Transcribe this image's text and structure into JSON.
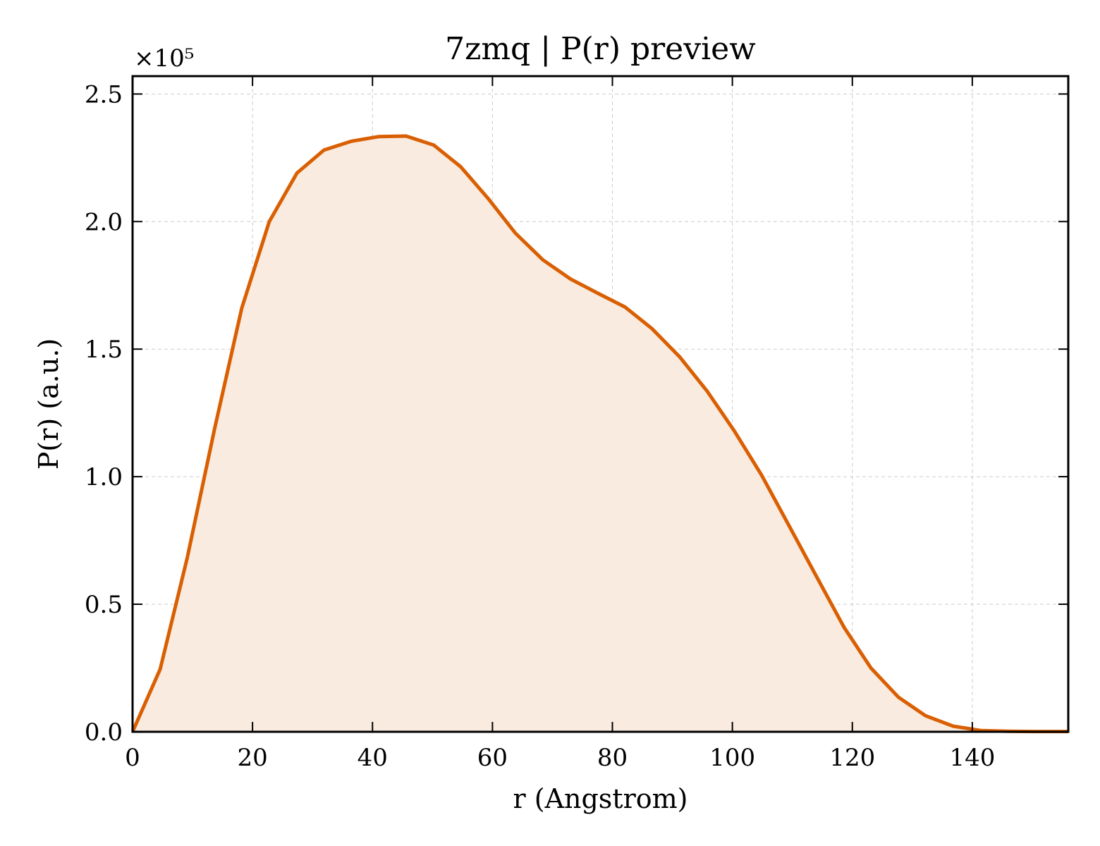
{
  "chart_data": {
    "type": "area",
    "title": "7zmq | P(r) preview",
    "xlabel": "r (Angstrom)",
    "ylabel": "P(r) (a.u.)",
    "y_offset_label": "×10⁵",
    "xlim": [
      0,
      156
    ],
    "ylim": [
      0,
      2.57
    ],
    "y_scale_factor": 100000,
    "xticks": [
      0,
      20,
      40,
      60,
      80,
      100,
      120,
      140
    ],
    "xtick_labels": [
      "0",
      "20",
      "40",
      "60",
      "80",
      "100",
      "120",
      "140"
    ],
    "yticks": [
      0.0,
      0.5,
      1.0,
      1.5,
      2.0,
      2.5
    ],
    "ytick_labels": [
      "0.0",
      "0.5",
      "1.0",
      "1.5",
      "2.0",
      "2.5"
    ],
    "grid": true,
    "line_color": "#d95f02",
    "fill_color": "#f9ebe0",
    "series": [
      {
        "x": [
          0,
          4.6,
          9.1,
          13.7,
          18.2,
          22.8,
          27.4,
          31.9,
          36.5,
          41.0,
          45.6,
          50.2,
          54.7,
          59.3,
          63.8,
          68.4,
          73.0,
          77.5,
          82.1,
          86.6,
          91.2,
          95.8,
          100.3,
          104.9,
          109.4,
          114.0,
          118.6,
          123.1,
          127.7,
          132.2,
          136.8,
          141.4,
          145.9,
          150.5,
          156
        ],
        "y": [
          0.0,
          0.245,
          0.68,
          1.19,
          1.66,
          2.0,
          2.19,
          2.28,
          2.315,
          2.333,
          2.335,
          2.3,
          2.215,
          2.09,
          1.955,
          1.85,
          1.775,
          1.72,
          1.665,
          1.58,
          1.47,
          1.335,
          1.18,
          1.005,
          0.81,
          0.61,
          0.41,
          0.25,
          0.135,
          0.063,
          0.022,
          0.005,
          0.002,
          0.001,
          0.001
        ]
      }
    ]
  }
}
